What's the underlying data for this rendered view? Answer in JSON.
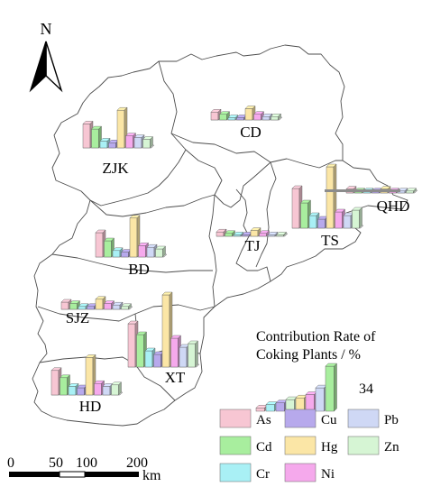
{
  "map": {
    "north_label": "N",
    "boundary_color": "#4d4d4d"
  },
  "legend": {
    "title_line1": "Contribution Rate of",
    "title_line2": "Coking Plants / %",
    "reference_value_label": "34",
    "items": [
      {
        "element": "As",
        "color": "#f7c6d3"
      },
      {
        "element": "Cu",
        "color": "#b7a9ec"
      },
      {
        "element": "Pb",
        "color": "#cfd8f5"
      },
      {
        "element": "Cd",
        "color": "#a8ee9e"
      },
      {
        "element": "Hg",
        "color": "#fbe6a6"
      },
      {
        "element": "Zn",
        "color": "#d6f5d4"
      },
      {
        "element": "Cr",
        "color": "#a9f0f5"
      },
      {
        "element": "Ni",
        "color": "#f5a9ec"
      }
    ]
  },
  "scale_bar": {
    "tick_labels": [
      "0",
      "50",
      "100",
      "200"
    ],
    "unit": "km"
  },
  "chart_data": {
    "type": "bar",
    "title": "Contribution Rate of Coking Plants / %",
    "unit": "%",
    "categories": [
      "As",
      "Cd",
      "Cr",
      "Cu",
      "Hg",
      "Ni",
      "Pb",
      "Zn"
    ],
    "reference_value": 34,
    "cities": [
      {
        "name": "ZJK",
        "values": [
          14,
          11,
          4,
          3,
          22,
          7,
          6,
          5
        ]
      },
      {
        "name": "CD",
        "values": [
          7,
          5,
          2,
          2,
          10,
          5,
          3,
          3
        ]
      },
      {
        "name": "QHD",
        "values": [
          2,
          1,
          1,
          1,
          2,
          1,
          1,
          1
        ]
      },
      {
        "name": "TS",
        "values": [
          22,
          14,
          7,
          5,
          34,
          9,
          7,
          10
        ]
      },
      {
        "name": "TJ",
        "values": [
          3,
          2,
          1,
          1,
          4,
          2,
          1,
          1
        ]
      },
      {
        "name": "BD",
        "values": [
          15,
          10,
          4,
          3,
          24,
          7,
          6,
          5
        ]
      },
      {
        "name": "SJZ",
        "values": [
          5,
          4,
          2,
          2,
          7,
          4,
          3,
          2
        ]
      },
      {
        "name": "XT",
        "values": [
          24,
          18,
          9,
          7,
          40,
          16,
          11,
          13
        ]
      },
      {
        "name": "HD",
        "values": [
          17,
          12,
          6,
          5,
          26,
          8,
          6,
          7
        ]
      }
    ],
    "legend_sample_values": [
      2,
      4,
      5,
      7,
      8,
      10,
      14,
      27
    ]
  }
}
